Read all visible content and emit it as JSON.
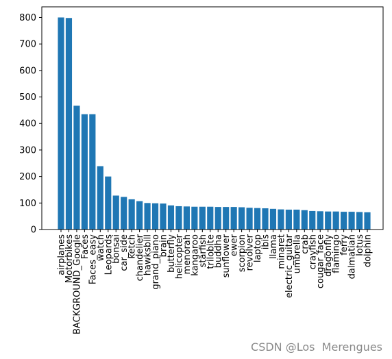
{
  "chart_data": {
    "type": "bar",
    "title": "",
    "xlabel": "",
    "ylabel": "",
    "ylim": [
      0,
      840
    ],
    "yticks": [
      0,
      100,
      200,
      300,
      400,
      500,
      600,
      700,
      800
    ],
    "bar_color": "#1f77b4",
    "categories": [
      "airplanes",
      "Motorbikes",
      "BACKGROUND_Google",
      "Faces",
      "Faces_easy",
      "watch",
      "Leopards",
      "bonsai",
      "car_side",
      "ketch",
      "chandelier",
      "hawksbill",
      "grand_piano",
      "brain",
      "butterfly",
      "helicopter",
      "menorah",
      "kangaroo",
      "starfish",
      "trilobite",
      "buddha",
      "sunflower",
      "ewer",
      "scorpion",
      "revolver",
      "laptop",
      "ibis",
      "llama",
      "minaret",
      "electric_guitar",
      "umbrella",
      "crab",
      "crayfish",
      "cougar_face",
      "dragonfly",
      "flamingo",
      "ferry",
      "dalmatian",
      "lotus",
      "dolphin"
    ],
    "values": [
      800,
      798,
      467,
      435,
      435,
      239,
      200,
      128,
      123,
      114,
      107,
      100,
      99,
      98,
      91,
      88,
      87,
      86,
      86,
      86,
      85,
      85,
      85,
      84,
      82,
      81,
      80,
      78,
      76,
      75,
      75,
      73,
      70,
      69,
      68,
      68,
      67,
      67,
      66,
      65
    ]
  },
  "watermark": "CSDN @Los  Merengues"
}
